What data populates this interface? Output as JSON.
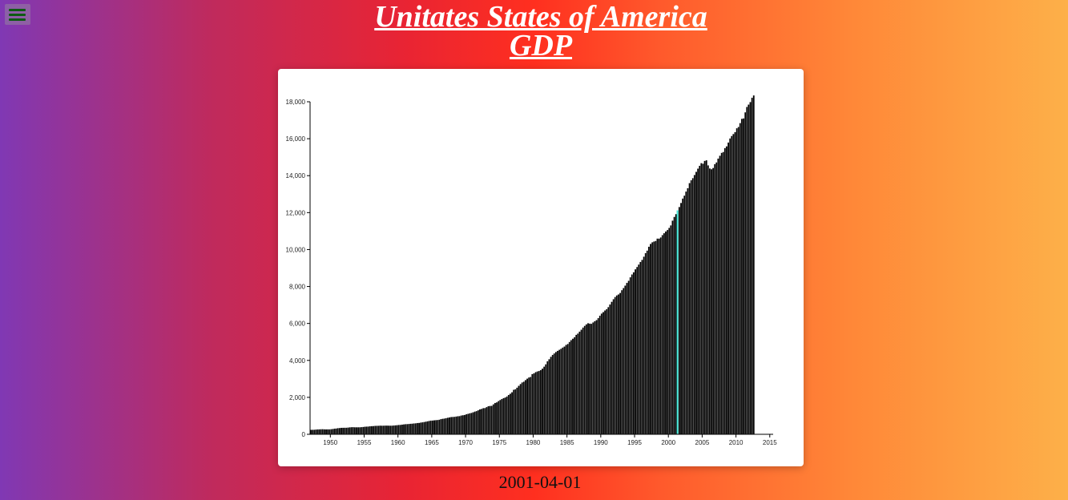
{
  "page": {
    "title_line1": "Unitates States of America",
    "title_line2": "GDP",
    "selected_date": "2001-04-01",
    "menu_icon": "hamburger-menu-icon"
  },
  "colors": {
    "bar": "#000000",
    "highlight": "#40e0d0"
  },
  "chart_data": {
    "type": "bar",
    "title": "",
    "xlabel": "",
    "ylabel": "",
    "xlim": [
      1947.0,
      2015.5
    ],
    "ylim": [
      0,
      18000
    ],
    "yticks": [
      0,
      2000,
      4000,
      6000,
      8000,
      10000,
      12000,
      14000,
      16000,
      18000
    ],
    "ytick_labels": [
      "0",
      "2,000",
      "4,000",
      "6,000",
      "8,000",
      "10,000",
      "12,000",
      "14,000",
      "16,000",
      "18,000"
    ],
    "xticks": [
      1950,
      1955,
      1960,
      1965,
      1970,
      1975,
      1980,
      1985,
      1990,
      1995,
      2000,
      2005,
      2010,
      2015
    ],
    "xtick_labels": [
      "1950",
      "1955",
      "1960",
      "1965",
      "1970",
      "1975",
      "1980",
      "1985",
      "1990",
      "1995",
      "2000",
      "2005",
      "2010",
      "2015"
    ],
    "highlighted": {
      "date": "2001-04-01",
      "value": 10470
    },
    "grid": false,
    "series": [
      {
        "frequency": "quarterly",
        "start": "1947-01-01",
        "end": "2015-07-01",
        "values": [
          243.1,
          246.3,
          250.1,
          260.3,
          266.2,
          272.9,
          279.5,
          280.7,
          275.4,
          271.7,
          273.3,
          271.0,
          281.2,
          290.7,
          308.5,
          320.3,
          336.4,
          344.5,
          351.8,
          356.6,
          360.2,
          361.4,
          368.1,
          381.2,
          388.5,
          390.7,
          385.9,
          385.7,
          385.6,
          386.5,
          391.6,
          400.3,
          413.8,
          418.0,
          426.1,
          436.7,
          445.7,
          451.4,
          458.6,
          461.1,
          464.9,
          474.6,
          471.3,
          472.8,
          475.8,
          475.7,
          474.2,
          472.9,
          473.8,
          478.9,
          489.2,
          498.3,
          508.1,
          515.5,
          525.6,
          541.2,
          551.7,
          557.8,
          563.4,
          573.4,
          582.4,
          589.8,
          601.3,
          612.1,
          621.5,
          637.5,
          651.6,
          669.1,
          689.2,
          708.9,
          729.0,
          741.3,
          751.0,
          760.8,
          770.7,
          778.6,
          796.2,
          825.8,
          844.9,
          857.2,
          879.1,
          899.1,
          915.6,
          936.1,
          943.3,
          951.3,
          967.4,
          980.4,
          990.5,
          1020.9,
          1037.3,
          1053.7,
          1087.8,
          1109.4,
          1139.9,
          1159.6,
          1195.0,
          1234.5,
          1258.6,
          1301.6,
          1353.2,
          1378.3,
          1416.9,
          1426.5,
          1474.2,
          1523.4,
          1538.7,
          1542.8,
          1626.4,
          1696.3,
          1734.0,
          1801.2,
          1861.1,
          1911.6,
          1961.8,
          1996.5,
          2053.6,
          2131.1,
          2199.1,
          2278.8,
          2410.6,
          2442.0,
          2529.3,
          2626.8,
          2727.0,
          2810.8,
          2852.1,
          2938.7,
          3015.4,
          3079.7,
          3105.2,
          3259.6,
          3304.9,
          3368.2,
          3405.5,
          3430.1,
          3478.7,
          3557.3,
          3665.2,
          3793.6,
          3955.0,
          4068.2,
          4201.5,
          4301.2,
          4380.6,
          4461.0,
          4521.8,
          4576.7,
          4633.8,
          4699.6,
          4751.0,
          4841.5,
          4895.2,
          5004.6,
          5098.5,
          5180.6,
          5263.7,
          5387.4,
          5456.9,
          5559.7,
          5662.7,
          5783.7,
          5874.8,
          5958.3,
          6014.9,
          5990.0,
          5986.1,
          6055.5,
          6125.3,
          6183.6,
          6292.3,
          6421.5,
          6537.6,
          6616.7,
          6704.5,
          6779.7,
          6888.1,
          7028.6,
          7176.9,
          7314.8,
          7436.1,
          7522.9,
          7572.4,
          7655.5,
          7805.3,
          7918.3,
          8050.1,
          8199.0,
          8311.3,
          8501.3,
          8654.6,
          8776.2,
          8934.4,
          9061.7,
          9192.7,
          9329.1,
          9445.3,
          9617.0,
          9810.1,
          9947.8,
          10156.2,
          10307.5,
          10394.8,
          10435.8,
          10470.2,
          10599.0,
          10598.0,
          10660.5,
          10783.5,
          10887.5,
          10984.0,
          11061.4,
          11174.1,
          11312.8,
          11566.7,
          11772.2,
          11923.4,
          12112.2,
          12305.3,
          12527.2,
          12767.3,
          12922.7,
          13142.9,
          13324.2,
          13599.2,
          13753.4,
          13870.2,
          14039.6,
          14208.6,
          14382.4,
          14535.0,
          14681.5,
          14651.0,
          14805.6,
          14835.2,
          14559.5,
          14394.5,
          14352.9,
          14420.3,
          14628.0,
          14721.4,
          14926.1,
          15079.9,
          15240.8,
          15285.8,
          15496.2,
          15591.8,
          15796.5,
          16019.8,
          16152.3,
          16257.2,
          16358.9,
          16569.6,
          16637.9,
          16848.7,
          17083.1,
          17104.6,
          17432.9,
          17721.7,
          17849.9,
          17984.2,
          18219.4,
          18346.0
        ]
      }
    ]
  }
}
